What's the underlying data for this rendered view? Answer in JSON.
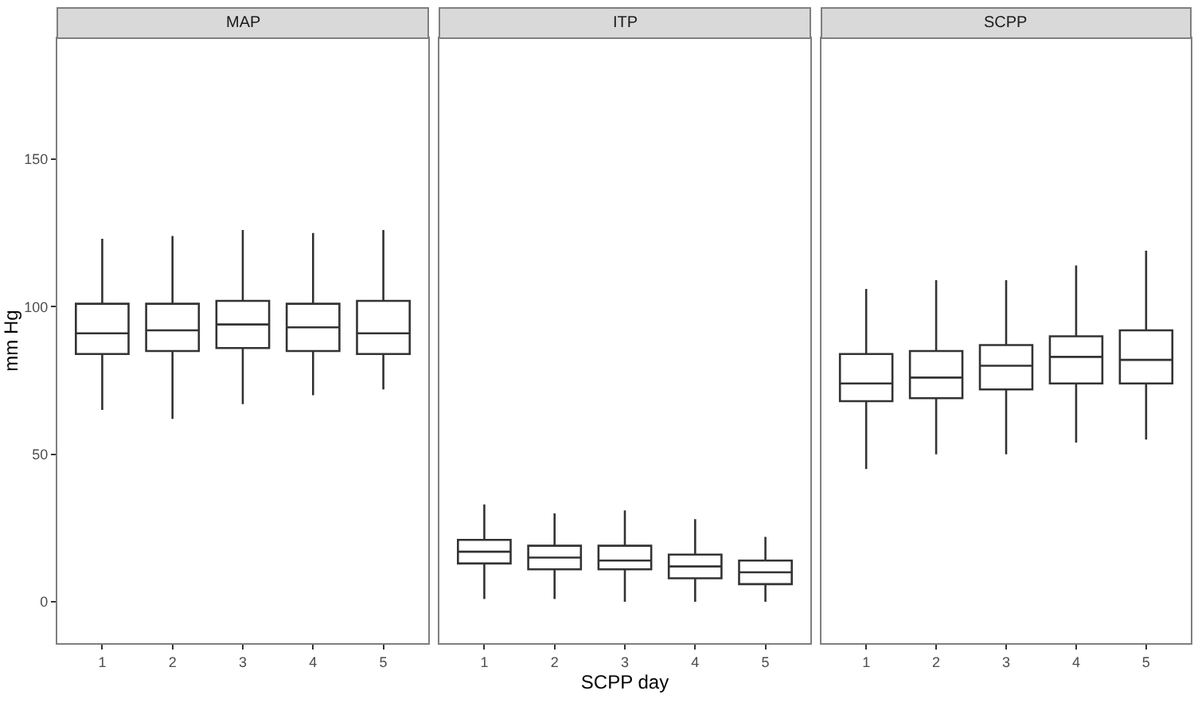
{
  "chart_data": [
    {
      "type": "box",
      "title": "MAP",
      "ylabel": "mm Hg",
      "categories": [
        "1",
        "2",
        "3",
        "4",
        "5"
      ],
      "ylim": [
        -14,
        191
      ],
      "yticks": [
        0,
        50,
        100,
        150
      ],
      "grid": false,
      "color": "#333333",
      "boxes": [
        {
          "low": 65,
          "q1": 84,
          "median": 91,
          "q3": 101,
          "high": 123
        },
        {
          "low": 62,
          "q1": 85,
          "median": 92,
          "q3": 101,
          "high": 124
        },
        {
          "low": 67,
          "q1": 86,
          "median": 94,
          "q3": 102,
          "high": 126
        },
        {
          "low": 70,
          "q1": 85,
          "median": 93,
          "q3": 101,
          "high": 125
        },
        {
          "low": 72,
          "q1": 84,
          "median": 91,
          "q3": 102,
          "high": 126
        }
      ]
    },
    {
      "type": "box",
      "title": "ITP",
      "xlabel": "SCPP day",
      "categories": [
        "1",
        "2",
        "3",
        "4",
        "5"
      ],
      "ylim": [
        -14,
        191
      ],
      "yticks": [
        0,
        50,
        100,
        150
      ],
      "tick_labels": "x",
      "grid": false,
      "color": "#333333",
      "boxes": [
        {
          "low": 1,
          "q1": 13,
          "median": 17,
          "q3": 21,
          "high": 33
        },
        {
          "low": 1,
          "q1": 11,
          "median": 15,
          "q3": 19,
          "high": 30
        },
        {
          "low": 0,
          "q1": 11,
          "median": 14,
          "q3": 19,
          "high": 31
        },
        {
          "low": 0,
          "q1": 8,
          "median": 12,
          "q3": 16,
          "high": 28
        },
        {
          "low": 0,
          "q1": 6,
          "median": 10,
          "q3": 14,
          "high": 22
        }
      ]
    },
    {
      "type": "box",
      "title": "SCPP",
      "categories": [
        "1",
        "2",
        "3",
        "4",
        "5"
      ],
      "ylim": [
        -14,
        191
      ],
      "yticks": [
        0,
        50,
        100,
        150
      ],
      "tick_labels": "x",
      "grid": false,
      "color": "#333333",
      "boxes": [
        {
          "low": 45,
          "q1": 68,
          "median": 74,
          "q3": 84,
          "high": 106
        },
        {
          "low": 50,
          "q1": 69,
          "median": 76,
          "q3": 85,
          "high": 109
        },
        {
          "low": 50,
          "q1": 72,
          "median": 80,
          "q3": 87,
          "high": 109
        },
        {
          "low": 54,
          "q1": 74,
          "median": 83,
          "q3": 90,
          "high": 114
        },
        {
          "low": 55,
          "q1": 74,
          "median": 82,
          "q3": 92,
          "high": 119
        }
      ]
    }
  ]
}
